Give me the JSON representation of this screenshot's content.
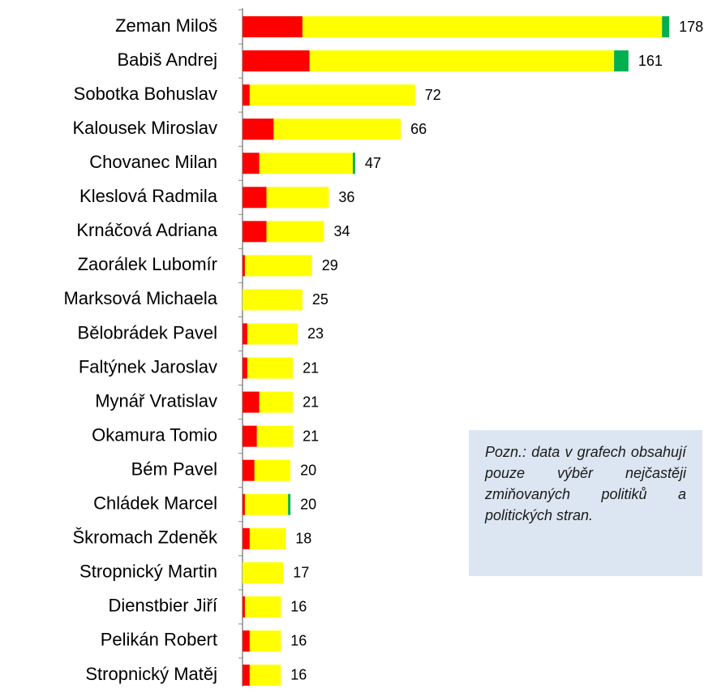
{
  "chart_data": {
    "type": "stacked-bar-horizontal",
    "categories": [
      "Zeman Miloš",
      "Babiš Andrej",
      "Sobotka Bohuslav",
      "Kalousek Miroslav",
      "Chovanec Milan",
      "Kleslová Radmila",
      "Krnáčová Adriana",
      "Zaorálek Lubomír",
      "Marksová Michaela",
      "Bělobrádek Pavel",
      "Faltýnek Jaroslav",
      "Mynář Vratislav",
      "Okamura Tomio",
      "Bém Pavel",
      "Chládek Marcel",
      "Škromach Zdeněk",
      "Stropnický Martin",
      "Dienstbier Jiří",
      "Pelikán Robert",
      "Stropnický Matěj"
    ],
    "series": [
      {
        "color": "#ff0000",
        "values": [
          25,
          28,
          3,
          13,
          7,
          10,
          10,
          1,
          0,
          2,
          2,
          7,
          6,
          5,
          1,
          3,
          0,
          1,
          3,
          3
        ]
      },
      {
        "color": "#ffff00",
        "values": [
          150,
          127,
          69,
          53,
          39,
          26,
          24,
          28,
          25,
          21,
          19,
          14,
          15,
          15,
          18,
          15,
          17,
          15,
          13,
          13
        ]
      },
      {
        "color": "#00b050",
        "values": [
          3,
          6,
          0,
          0,
          1,
          0,
          0,
          0,
          0,
          0,
          0,
          0,
          0,
          0,
          1,
          0,
          0,
          0,
          0,
          0
        ]
      }
    ],
    "totals": [
      178,
      161,
      72,
      66,
      47,
      36,
      34,
      29,
      25,
      23,
      21,
      21,
      21,
      20,
      20,
      18,
      17,
      16,
      16,
      16
    ],
    "xlim": [
      0,
      180
    ],
    "note": "Pozn.: data v grafech obsahují pouze výběr nejčastěji zmiňovaných politiků a politických stran."
  }
}
